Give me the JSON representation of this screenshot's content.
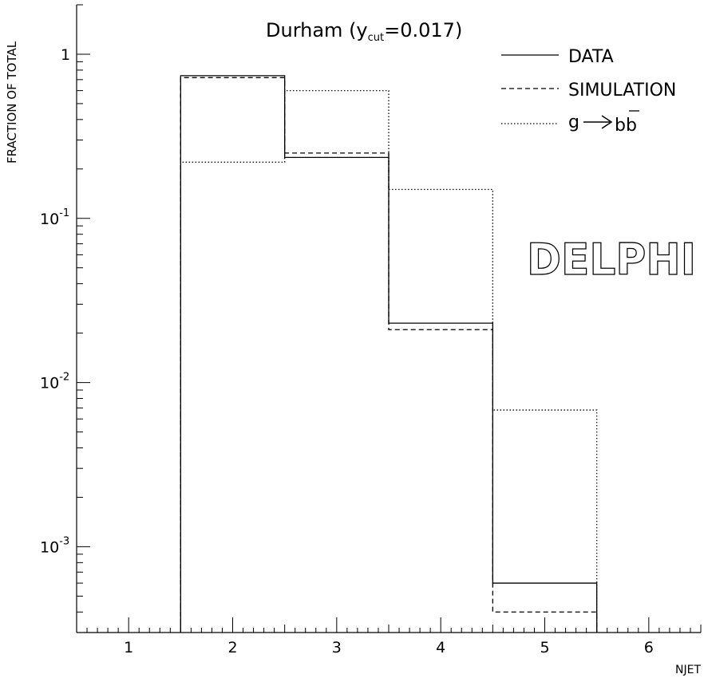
{
  "chart_data": {
    "type": "step-histogram",
    "title_main": "Durham (y",
    "title_sub": "cut",
    "title_rest": "=0.017)",
    "ylabel": "FRACTION OF TOTAL",
    "xlabel": "NJET",
    "x_ticks": [
      "1",
      "2",
      "3",
      "4",
      "5",
      "6"
    ],
    "y_ticks": [
      {
        "value": 1,
        "base": "1",
        "exp": ""
      },
      {
        "value": 0.1,
        "base": "10",
        "exp": "-1"
      },
      {
        "value": 0.01,
        "base": "10",
        "exp": "-2"
      },
      {
        "value": 0.001,
        "base": "10",
        "exp": "-3"
      }
    ],
    "xlim": [
      0.5,
      6.5
    ],
    "ylim": [
      0.0003,
      2
    ],
    "y_scale": "log",
    "grid": false,
    "legend_position": "top-right",
    "bin_edges": [
      1.5,
      2.5,
      3.5,
      4.5,
      5.5
    ],
    "series": [
      {
        "name": "DATA",
        "style": "solid",
        "values": [
          0.74,
          0.235,
          0.023,
          0.0006
        ]
      },
      {
        "name": "SIMULATION",
        "style": "dashed",
        "values": [
          0.72,
          0.25,
          0.021,
          0.0004
        ]
      },
      {
        "name_prefix": "g",
        "name_suffix": "bb",
        "style": "dotted",
        "values": [
          0.22,
          0.6,
          0.15,
          0.0068
        ]
      }
    ]
  },
  "logo_text": "DELPHI"
}
